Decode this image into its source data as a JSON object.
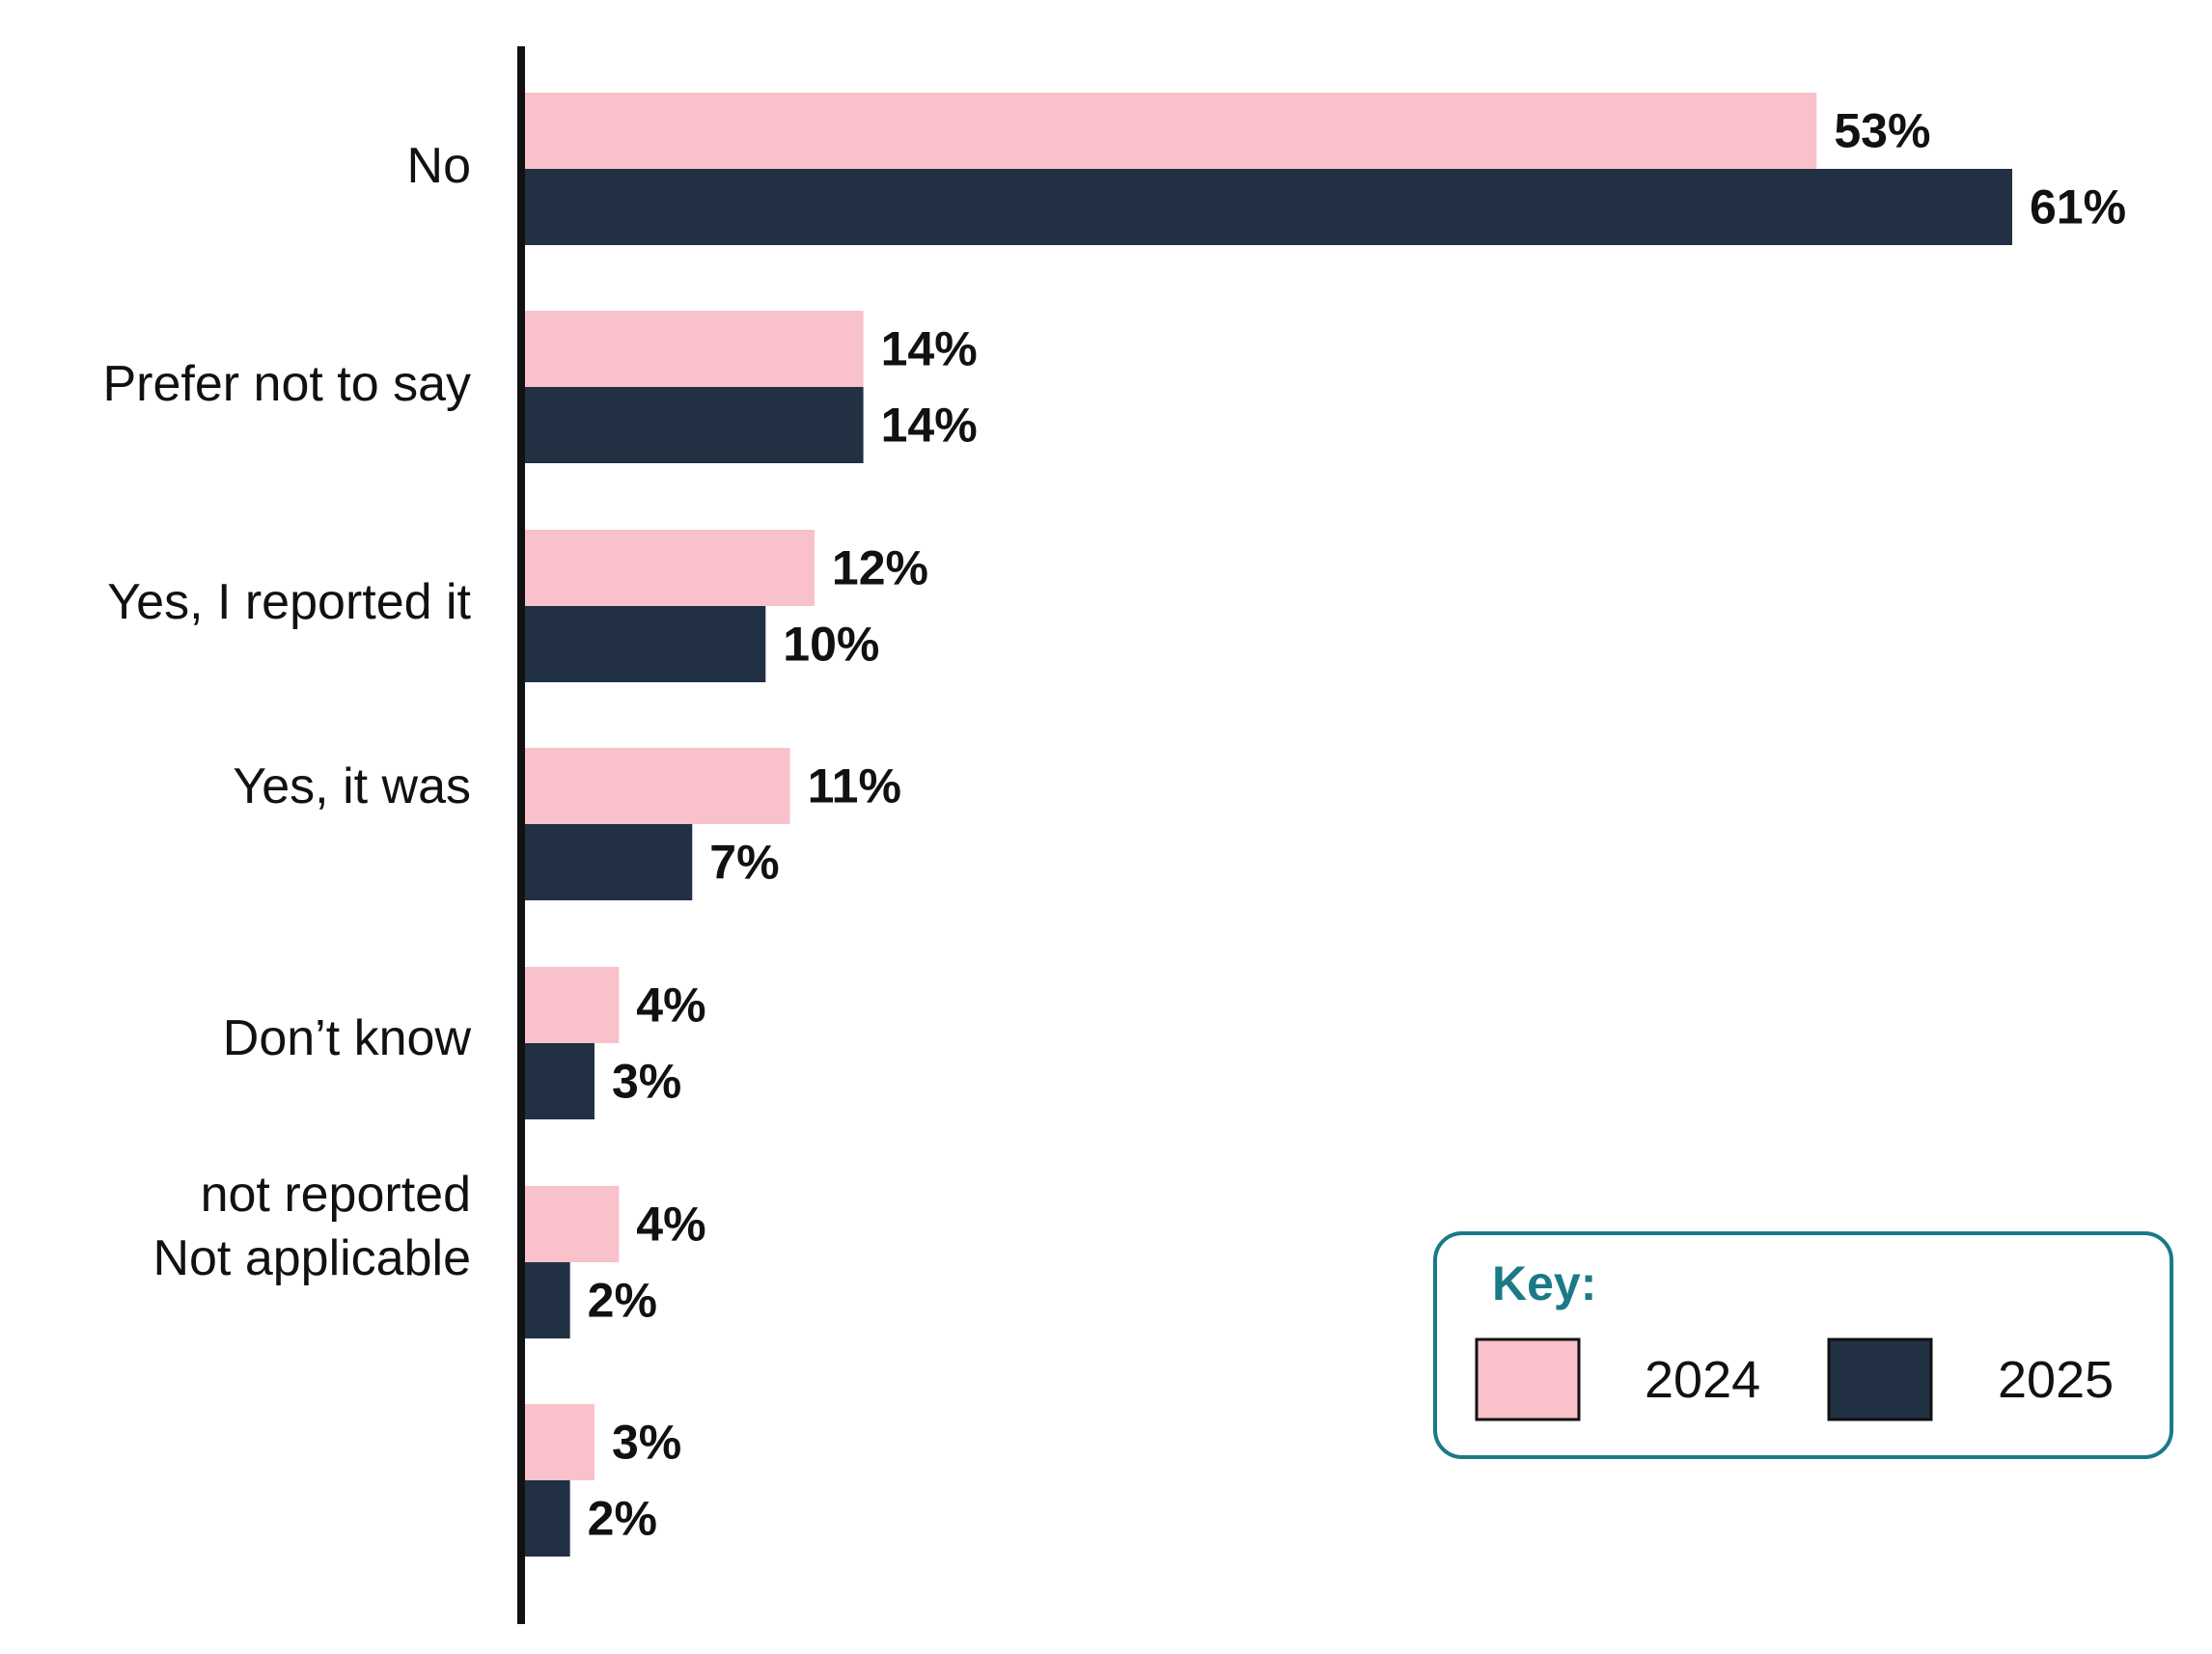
{
  "chart_data": {
    "type": "bar",
    "orientation": "horizontal",
    "categories": [
      "No",
      "Prefer not to say",
      "Yes, I reported it",
      "Yes, it was",
      "Don’t know",
      "not reported",
      "Not applicable"
    ],
    "series": [
      {
        "name": "2024",
        "values": [
          53,
          14,
          12,
          11,
          4,
          4,
          3
        ],
        "labels": [
          "53%",
          "14%",
          "12%",
          "11%",
          "4%",
          "4%",
          "3%"
        ]
      },
      {
        "name": "2025",
        "values": [
          61,
          14,
          10,
          7,
          3,
          2,
          2
        ],
        "labels": [
          "61%",
          "14%",
          "10%",
          "7%",
          "3%",
          "2%",
          "2%"
        ]
      }
    ],
    "xlim": [
      0,
      61
    ],
    "grid": false,
    "legend": {
      "title": "Key:",
      "placement": "bottom-right"
    }
  },
  "colors": {
    "series_2024": "#F9C1C9",
    "series_2025": "#223044",
    "axis": "#111111",
    "legend_border": "#1A7A86",
    "legend_title": "#1A7A86"
  }
}
